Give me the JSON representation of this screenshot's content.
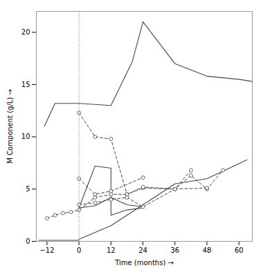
{
  "chart_data": {
    "type": "line",
    "xlabel": "Time (months)",
    "ylabel": "M Component (g/L)",
    "xlim": [
      -16,
      65
    ],
    "ylim": [
      0,
      22
    ],
    "xticks": [
      -12,
      0,
      12,
      24,
      36,
      48,
      60
    ],
    "yticks": [
      0,
      5,
      10,
      15,
      20
    ],
    "vline_x": 0,
    "color": "#444444",
    "series": [
      {
        "x": [
          -15,
          -12,
          0
        ],
        "values": [
          0.1,
          0.1,
          0.1
        ],
        "line_style": "solid"
      },
      {
        "x": [
          0,
          12,
          24,
          36,
          48,
          63
        ],
        "values": [
          0.2,
          1.5,
          3.5,
          5.5,
          6.0,
          7.8
        ],
        "line_style": "solid"
      },
      {
        "x": [
          -13,
          -9,
          0,
          12
        ],
        "values": [
          11.0,
          13.2,
          13.2,
          13.0
        ],
        "line_style": "solid"
      },
      {
        "x": [
          12,
          20,
          24,
          36,
          48,
          60,
          65
        ],
        "values": [
          13.0,
          17.2,
          21.0,
          17.0,
          15.8,
          15.5,
          15.3
        ],
        "line_style": "solid"
      },
      {
        "x": [
          0,
          6,
          12,
          12,
          18,
          24
        ],
        "values": [
          3.2,
          7.2,
          7.0,
          2.5,
          3.0,
          3.2
        ],
        "line_style": "solid"
      },
      {
        "x": [
          0,
          6,
          12,
          18,
          24
        ],
        "values": [
          3.2,
          3.4,
          4.2,
          3.5,
          3.3
        ],
        "line_style": "solid"
      },
      {
        "x": [
          0,
          6,
          12,
          18,
          24,
          36,
          42,
          48,
          54
        ],
        "values": [
          12.3,
          10.0,
          9.8,
          4.5,
          5.1,
          5.0,
          6.3,
          5.0,
          6.8
        ],
        "line_style": "dashed",
        "marker": "o"
      },
      {
        "x": [
          -12,
          -9,
          -6,
          -3,
          0,
          6,
          12,
          18,
          24,
          36,
          48
        ],
        "values": [
          2.2,
          2.5,
          2.7,
          2.8,
          3.0,
          4.2,
          4.5,
          4.5,
          5.2,
          5.0,
          5.1
        ],
        "line_style": "dashed",
        "marker": "o"
      },
      {
        "x": [
          0,
          6,
          12,
          24
        ],
        "values": [
          6.0,
          4.5,
          4.8,
          6.1
        ],
        "line_style": "dashed",
        "marker": "o"
      },
      {
        "x": [
          0,
          6,
          12,
          18,
          24,
          36,
          42
        ],
        "values": [
          3.5,
          3.7,
          4.0,
          4.2,
          3.3,
          5.0,
          6.8
        ],
        "line_style": "dashed",
        "marker": "o"
      }
    ]
  }
}
